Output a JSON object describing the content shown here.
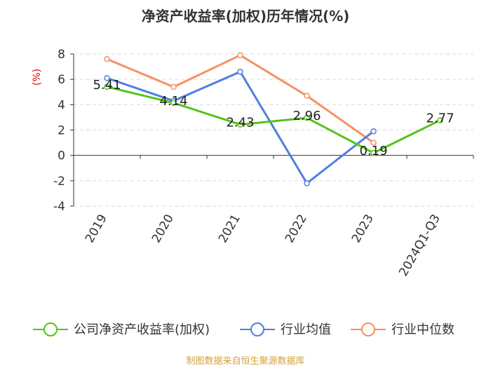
{
  "chart_data": {
    "type": "line",
    "title": "净资产收益率(加权)历年情况(%)",
    "ylabel": "(%)",
    "categories": [
      "2019",
      "2020",
      "2021",
      "2022",
      "2023",
      "2024Q1-Q3"
    ],
    "ylim": [
      -4,
      8
    ],
    "yticks": [
      -4,
      -2,
      0,
      2,
      4,
      6,
      8
    ],
    "grid": true,
    "legend_position": "bottom",
    "series": [
      {
        "name": "公司净资产收益率(加权)",
        "color": "#52c41a",
        "values": [
          5.41,
          4.14,
          2.43,
          2.96,
          0.19,
          2.77
        ],
        "labels": [
          "5.41",
          "4.14",
          "2.43",
          "2.96",
          "0.19",
          "2.77"
        ]
      },
      {
        "name": "行业均值",
        "color": "#4e7fe0",
        "values": [
          6.1,
          4.3,
          6.6,
          -2.2,
          1.9,
          null
        ]
      },
      {
        "name": "行业中位数",
        "color": "#f79060",
        "values": [
          7.6,
          5.4,
          7.9,
          4.7,
          1.0,
          null
        ]
      }
    ]
  },
  "footer": {
    "source": "制图数据来自恒生聚源数据库"
  }
}
